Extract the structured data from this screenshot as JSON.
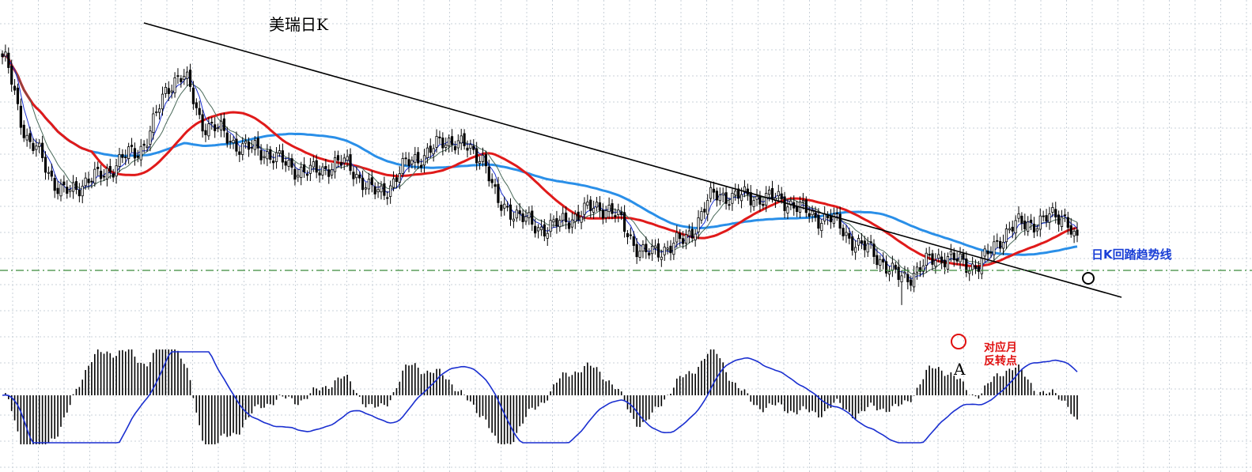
{
  "chart_data": {
    "type": "candlestick",
    "title": "美瑞日K",
    "grid": true,
    "colors": {
      "candle": "#000000",
      "ma_short": "#1a2fd0",
      "ma_mid": "#4a6a5a",
      "ma_red": "#e01a1a",
      "ma_blue": "#2a8fe8",
      "trendline": "#000000",
      "support": "#3a8a3a",
      "macd_line": "#1a2fd0",
      "macd_hist": "#000000",
      "marker_red": "#e01010",
      "marker_black": "#000000",
      "grid": "#c8d0d8"
    },
    "annotations": {
      "trendline_label": "日K回踏趋势线",
      "reversal_label_line1": "对应月",
      "reversal_label_line2": "反转点",
      "point_label": "A"
    },
    "price_range": [
      0,
      100
    ],
    "key_points": [
      {
        "t": 0,
        "y": 90
      },
      {
        "t": 10,
        "y": 60
      },
      {
        "t": 20,
        "y": 45
      },
      {
        "t": 30,
        "y": 50
      },
      {
        "t": 42,
        "y": 58
      },
      {
        "t": 58,
        "y": 85
      },
      {
        "t": 66,
        "y": 68
      },
      {
        "t": 80,
        "y": 60
      },
      {
        "t": 100,
        "y": 52
      },
      {
        "t": 110,
        "y": 55
      },
      {
        "t": 122,
        "y": 45
      },
      {
        "t": 135,
        "y": 57
      },
      {
        "t": 145,
        "y": 63
      },
      {
        "t": 155,
        "y": 58
      },
      {
        "t": 162,
        "y": 40
      },
      {
        "t": 175,
        "y": 33
      },
      {
        "t": 195,
        "y": 40
      },
      {
        "t": 210,
        "y": 24
      },
      {
        "t": 220,
        "y": 28
      },
      {
        "t": 232,
        "y": 44
      },
      {
        "t": 250,
        "y": 43
      },
      {
        "t": 268,
        "y": 36
      },
      {
        "t": 280,
        "y": 26
      },
      {
        "t": 292,
        "y": 16
      },
      {
        "t": 305,
        "y": 23
      },
      {
        "t": 315,
        "y": 20
      },
      {
        "t": 330,
        "y": 34
      },
      {
        "t": 345,
        "y": 37
      },
      {
        "t": 349,
        "y": 28
      }
    ]
  }
}
